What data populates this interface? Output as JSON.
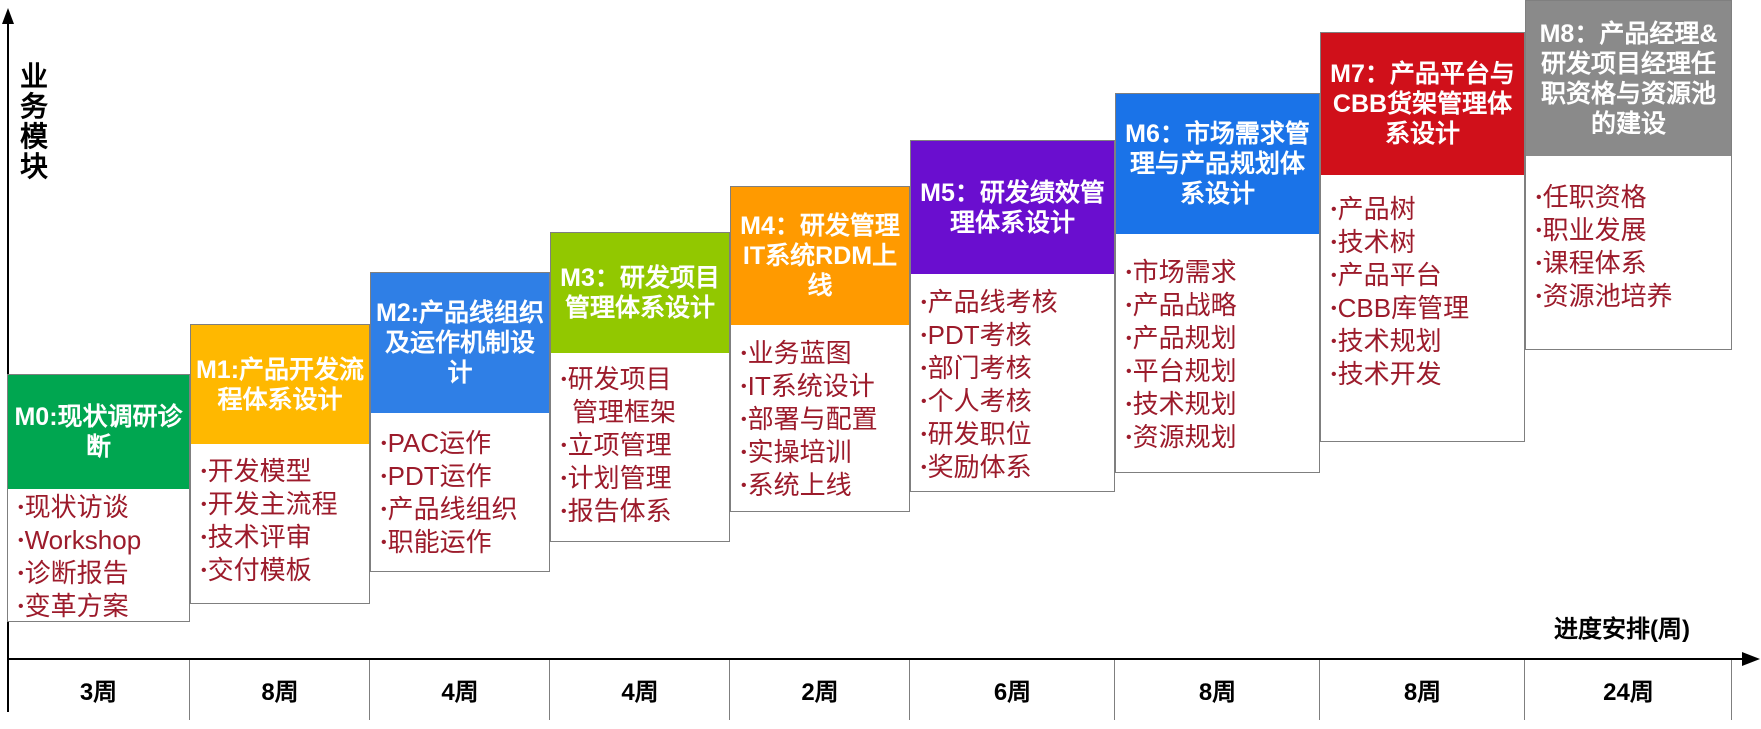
{
  "y_axis_label": "业务模块",
  "x_axis_label": "进度安排(周)",
  "stages": [
    {
      "title": "M0:现状调研诊断",
      "color": "#00a650",
      "duration": "3周",
      "items": [
        "现状访谈",
        "Workshop",
        "诊断报告",
        "变革方案"
      ]
    },
    {
      "title": "M1:产品开发流程体系设计",
      "color": "#ffb800",
      "duration": "8周",
      "items": [
        "开发模型",
        "开发主流程",
        "技术评审",
        "交付模板"
      ]
    },
    {
      "title": "M2:产品线组织及运作机制设计",
      "color": "#2f7fe6",
      "duration": "4周",
      "items": [
        "PAC运作",
        "PDT运作",
        "产品线组织",
        "职能运作"
      ]
    },
    {
      "title": "M3：研发项目管理体系设计",
      "color": "#92c800",
      "duration": "4周",
      "items": [
        "研发项目",
        "管理框架",
        "立项管理",
        "计划管理",
        "报告体系"
      ]
    },
    {
      "title": "M4：研发管理IT系统RDM上线",
      "color": "#ff9a00",
      "duration": "2周",
      "items": [
        "业务蓝图",
        "IT系统设计",
        "部署与配置",
        "实操培训",
        "系统上线"
      ]
    },
    {
      "title": "M5：研发绩效管理体系设计",
      "color": "#6a0ecf",
      "duration": "6周",
      "items": [
        "产品线考核",
        "PDT考核",
        "部门考核",
        "个人考核",
        "研发职位",
        "奖励体系"
      ]
    },
    {
      "title": "M6：市场需求管理与产品规划体系设计",
      "color": "#1a73e8",
      "duration": "8周",
      "items": [
        "市场需求",
        "产品战略",
        "产品规划",
        "平台规划",
        "技术规划",
        "资源规划"
      ]
    },
    {
      "title": "M7：产品平台与CBB货架管理体系设计",
      "color": "#d0101a",
      "duration": "8周",
      "items": [
        "产品树",
        "技术树",
        "产品平台",
        "CBB库管理",
        "技术规划",
        "技术开发"
      ]
    },
    {
      "title": "M8：产品经理&研发项目经理任职资格与资源池的建设",
      "color": "#8a8a8a",
      "duration": "24周",
      "items": [
        "任职资格",
        "职业发展",
        "课程体系",
        "资源池培养"
      ]
    }
  ]
}
